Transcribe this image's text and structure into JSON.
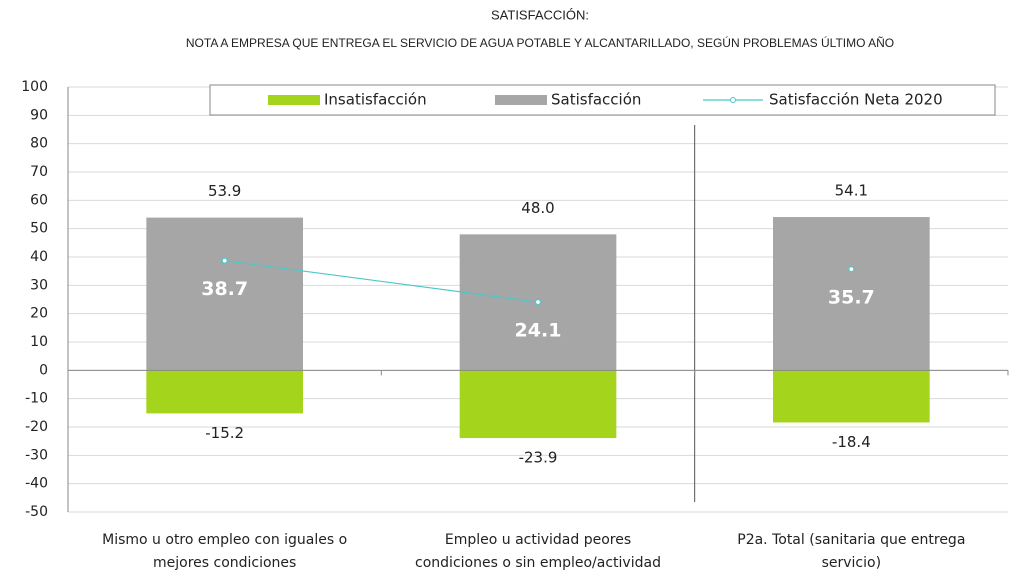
{
  "chart_data": {
    "type": "bar",
    "title": "SATISFACCIÓN:",
    "subtitle": "NOTA A EMPRESA QUE ENTREGA EL SERVICIO DE AGUA POTABLE Y ALCANTARILLADO, SEGÚN PROBLEMAS ÚLTIMO AÑO",
    "categories": [
      [
        "Mismo u otro empleo con iguales o",
        "mejores condiciones"
      ],
      [
        "Empleo u actividad peores",
        "condiciones o sin empleo/actividad"
      ],
      [
        "P2a. Total (sanitaria que entrega",
        "servicio)"
      ]
    ],
    "series": [
      {
        "name": "Insatisfacción",
        "color": "#a4d41c",
        "values": [
          -15.2,
          -23.9,
          -18.4
        ]
      },
      {
        "name": "Satisfacción",
        "color": "#a6a6a6",
        "values": [
          53.9,
          48,
          54.1
        ],
        "value_labels": [
          "53.9",
          "48.0",
          "54.1"
        ]
      },
      {
        "name": "Satisfacción Neta 2020",
        "type": "line",
        "color": "#4bc8c8",
        "values": [
          38.7,
          24.1,
          35.7
        ]
      }
    ],
    "ylim": [
      -50,
      100
    ],
    "yticks": [
      -50,
      -40,
      -30,
      -20,
      -10,
      0,
      10,
      20,
      30,
      40,
      50,
      60,
      70,
      80,
      90,
      100
    ],
    "grid": true,
    "legend": "top"
  }
}
